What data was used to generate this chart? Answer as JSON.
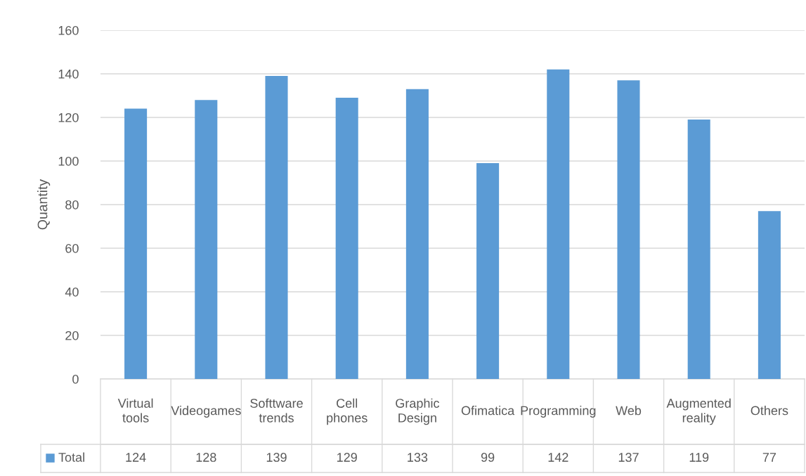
{
  "chart_data": {
    "type": "bar",
    "ylabel": "Quantity",
    "categories": [
      "Virtual tools",
      "Videogames",
      "Softtware trends",
      "Cell phones",
      "Graphic Design",
      "Ofimatica",
      "Programming",
      "Web",
      "Augmented reality",
      "Others"
    ],
    "series": [
      {
        "name": "Total",
        "color": "#5b9bd5",
        "values": [
          124,
          128,
          139,
          129,
          133,
          99,
          142,
          137,
          119,
          77
        ]
      }
    ],
    "ylim": [
      0,
      160
    ],
    "yticks": [
      0,
      20,
      40,
      60,
      80,
      100,
      120,
      140,
      160
    ],
    "grid": "y",
    "data_labels": true,
    "legend": "bottom"
  }
}
